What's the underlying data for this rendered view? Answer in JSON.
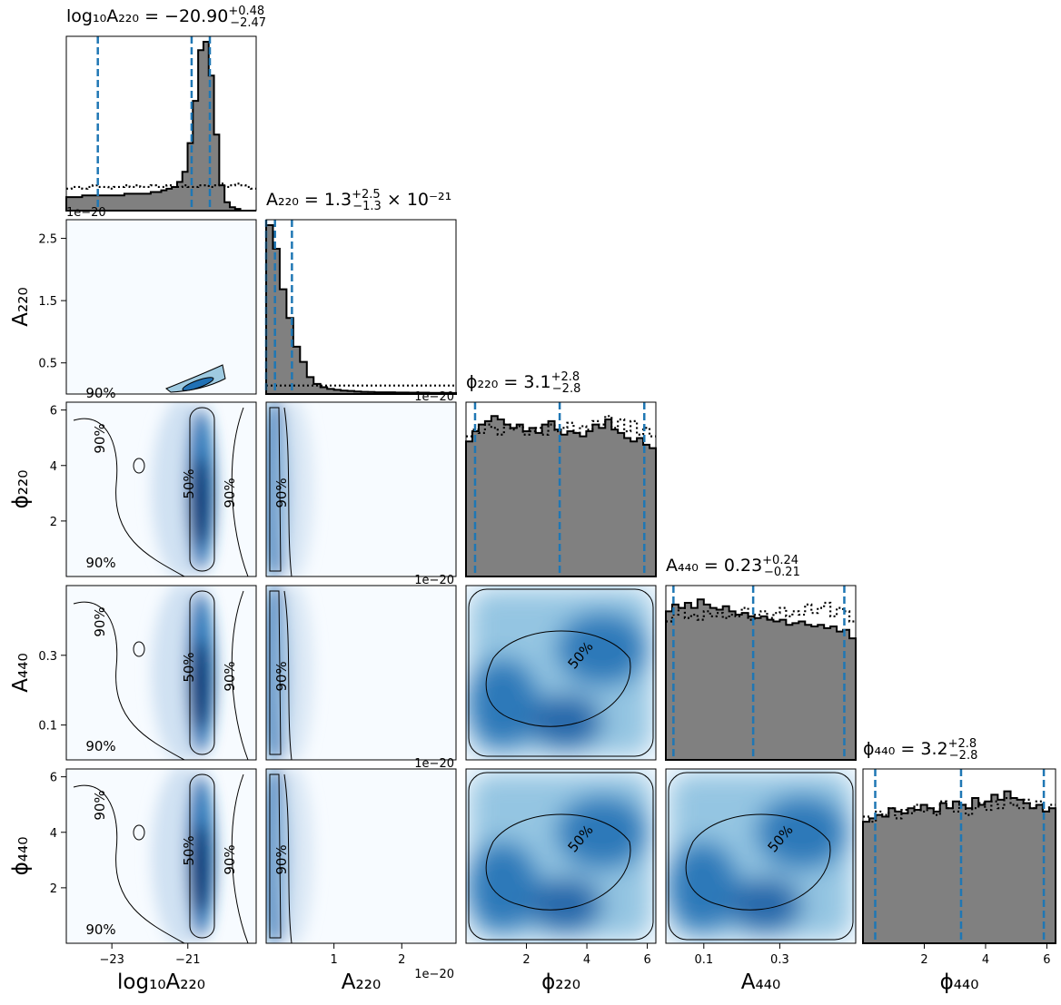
{
  "chart_data": {
    "type": "corner",
    "parameters": [
      {
        "name": "log10A220",
        "label": "log₁₀A₂₂₀",
        "range": [
          -24.2,
          -19.2
        ],
        "ticks": [
          -23,
          -21
        ],
        "tick_labels": [
          "−23",
          "−21"
        ],
        "title": {
          "lhs": "log₁₀A₂₂₀ = ",
          "median": "−20.90",
          "plus": "+0.48",
          "minus": "−2.47",
          "suffix": ""
        },
        "quantile_lines": [
          -23.37,
          -20.9,
          -20.42
        ],
        "offset_text": ""
      },
      {
        "name": "A220",
        "label": "A₂₂₀",
        "range": [
          0,
          2.8e-20
        ],
        "ticks": [
          1e-20,
          2e-20
        ],
        "tick_labels": [
          "1",
          "2"
        ],
        "title": {
          "lhs": "A₂₂₀ = ",
          "median": "1.3",
          "plus": "+2.5",
          "minus": "−1.3",
          "suffix": " × 10⁻²¹"
        },
        "quantile_lines": [
          0.0,
          1.3e-21,
          3.8e-21
        ],
        "offset_text": "1e−20"
      },
      {
        "name": "phi220",
        "label": "ϕ₂₂₀",
        "range": [
          0,
          6.283
        ],
        "ticks": [
          2,
          4,
          6
        ],
        "tick_labels": [
          "2",
          "4",
          "6"
        ],
        "title": {
          "lhs": "ϕ₂₂₀ = ",
          "median": "3.1",
          "plus": "+2.8",
          "minus": "−2.8",
          "suffix": ""
        },
        "quantile_lines": [
          0.3,
          3.1,
          5.9
        ],
        "offset_text": ""
      },
      {
        "name": "A440",
        "label": "A₄₄₀",
        "range": [
          0,
          0.5
        ],
        "ticks": [
          0.1,
          0.3
        ],
        "tick_labels": [
          "0.1",
          "0.3"
        ],
        "title": {
          "lhs": "A₄₄₀ = ",
          "median": "0.23",
          "plus": "+0.24",
          "minus": "−0.21",
          "suffix": ""
        },
        "quantile_lines": [
          0.02,
          0.23,
          0.47
        ],
        "offset_text": ""
      },
      {
        "name": "phi440",
        "label": "ϕ₄₄₀",
        "range": [
          0,
          6.283
        ],
        "ticks": [
          2,
          4,
          6
        ],
        "tick_labels": [
          "2",
          "4",
          "6"
        ],
        "title": {
          "lhs": "ϕ₄₄₀ = ",
          "median": "3.2",
          "plus": "+2.8",
          "minus": "−2.8",
          "suffix": ""
        },
        "quantile_lines": [
          0.4,
          3.2,
          5.9
        ],
        "offset_text": ""
      }
    ],
    "left_axis_ticks": {
      "A220": {
        "ticks": [
          5e-21,
          1.5e-20,
          2.5e-20
        ],
        "tick_labels": [
          "0.5",
          "1.5",
          "2.5"
        ],
        "offset_text": "1e−20"
      },
      "phi220": {
        "ticks": [
          2,
          4,
          6
        ],
        "tick_labels": [
          "2",
          "4",
          "6"
        ]
      },
      "A440": {
        "ticks": [
          0.1,
          0.3
        ],
        "tick_labels": [
          "0.1",
          "0.3"
        ]
      },
      "phi440": {
        "ticks": [
          2,
          4,
          6
        ],
        "tick_labels": [
          "2",
          "4",
          "6"
        ]
      }
    },
    "histograms": {
      "log10A220": {
        "posterior": [
          0.08,
          0.08,
          0.08,
          0.09,
          0.09,
          0.09,
          0.09,
          0.09,
          0.09,
          0.09,
          0.09,
          0.1,
          0.1,
          0.1,
          0.1,
          0.1,
          0.11,
          0.11,
          0.12,
          0.13,
          0.14,
          0.17,
          0.23,
          0.4,
          0.65,
          0.95,
          1.0,
          0.8,
          0.45,
          0.15,
          0.05,
          0.02,
          0.01,
          0.0,
          0.0,
          0.0
        ],
        "prior": [
          0.13,
          0.14,
          0.14,
          0.13,
          0.14,
          0.15,
          0.14,
          0.14,
          0.13,
          0.14,
          0.14,
          0.15,
          0.14,
          0.15,
          0.14,
          0.14,
          0.15,
          0.14,
          0.14,
          0.15,
          0.14,
          0.14,
          0.15,
          0.14,
          0.14,
          0.15,
          0.15,
          0.14,
          0.15,
          0.16,
          0.14,
          0.15,
          0.16,
          0.15,
          0.14,
          0.13
        ]
      },
      "A220": {
        "posterior": [
          1.0,
          0.86,
          0.62,
          0.45,
          0.28,
          0.19,
          0.1,
          0.06,
          0.04,
          0.03,
          0.025,
          0.02,
          0.018,
          0.015,
          0.013,
          0.012,
          0.01,
          0.01,
          0.01,
          0.009,
          0.009,
          0.008,
          0.008,
          0.008,
          0.007,
          0.007,
          0.007,
          0.006
        ],
        "prior": [
          0.05,
          0.05,
          0.05,
          0.05,
          0.05,
          0.05,
          0.05,
          0.05,
          0.05,
          0.05,
          0.05,
          0.05,
          0.05,
          0.05,
          0.05,
          0.05,
          0.05,
          0.05,
          0.05,
          0.05,
          0.05,
          0.05,
          0.05,
          0.05,
          0.05,
          0.05,
          0.05,
          0.05
        ]
      },
      "phi220": {
        "posterior": [
          0.8,
          0.86,
          0.9,
          0.92,
          0.95,
          0.93,
          0.9,
          0.88,
          0.9,
          0.86,
          0.88,
          0.85,
          0.9,
          0.92,
          0.87,
          0.84,
          0.86,
          0.85,
          0.83,
          0.86,
          0.9,
          0.88,
          0.93,
          0.87,
          0.85,
          0.82,
          0.8,
          0.82,
          0.78,
          0.76
        ],
        "prior": [
          0.83,
          0.87,
          0.85,
          0.9,
          0.88,
          0.84,
          0.9,
          0.87,
          0.89,
          0.84,
          0.86,
          0.88,
          0.84,
          0.9,
          0.86,
          0.88,
          0.91,
          0.85,
          0.89,
          0.87,
          0.92,
          0.9,
          0.95,
          0.88,
          0.93,
          0.86,
          0.92,
          0.84,
          0.88,
          0.83
        ]
      },
      "A440": {
        "posterior": [
          0.88,
          0.92,
          0.9,
          0.93,
          0.9,
          0.95,
          0.92,
          0.9,
          0.89,
          0.91,
          0.88,
          0.86,
          0.87,
          0.85,
          0.84,
          0.85,
          0.83,
          0.82,
          0.83,
          0.8,
          0.81,
          0.82,
          0.8,
          0.79,
          0.8,
          0.78,
          0.79,
          0.76,
          0.77,
          0.72
        ],
        "prior": [
          0.82,
          0.86,
          0.9,
          0.84,
          0.86,
          0.83,
          0.88,
          0.85,
          0.87,
          0.84,
          0.86,
          0.85,
          0.9,
          0.83,
          0.86,
          0.88,
          0.84,
          0.87,
          0.9,
          0.85,
          0.88,
          0.86,
          0.92,
          0.87,
          0.9,
          0.93,
          0.85,
          0.9,
          0.88,
          0.82
        ]
      },
      "phi440": {
        "posterior": [
          0.72,
          0.74,
          0.76,
          0.75,
          0.8,
          0.78,
          0.77,
          0.8,
          0.79,
          0.82,
          0.8,
          0.78,
          0.83,
          0.8,
          0.84,
          0.82,
          0.8,
          0.86,
          0.82,
          0.84,
          0.88,
          0.85,
          0.9,
          0.86,
          0.85,
          0.83,
          0.8,
          0.82,
          0.78,
          0.8
        ],
        "prior": [
          0.75,
          0.72,
          0.78,
          0.76,
          0.8,
          0.74,
          0.79,
          0.77,
          0.82,
          0.78,
          0.8,
          0.76,
          0.84,
          0.8,
          0.78,
          0.82,
          0.76,
          0.8,
          0.83,
          0.79,
          0.84,
          0.8,
          0.86,
          0.82,
          0.8,
          0.85,
          0.8,
          0.84,
          0.78,
          0.82
        ]
      }
    },
    "contour_labels": [
      "50%",
      "90%"
    ],
    "style": {
      "posterior_fill": "#808080",
      "posterior_edge": "#000000",
      "quantile_color": "#1f77b4",
      "density_low": "#f7fbff",
      "density_mid": "#6baed6",
      "density_high": "#08306b"
    }
  }
}
